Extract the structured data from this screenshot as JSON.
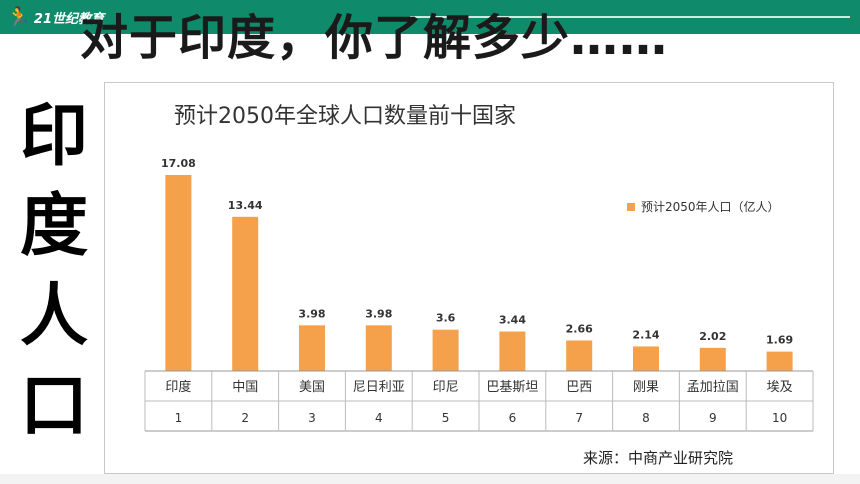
{
  "header": {
    "logo_text": "21世纪教育",
    "slide_title": "对于印度，你了解多少……"
  },
  "side_title": [
    "印",
    "度",
    "人",
    "口"
  ],
  "colors": {
    "bar": "#f5a04b",
    "header_bar": "#0f8a6a"
  },
  "chart_data": {
    "type": "bar",
    "title": "预计2050年全球人口数量前十国家",
    "categories": [
      "印度",
      "中国",
      "美国",
      "尼日利亚",
      "印尼",
      "巴基斯坦",
      "巴西",
      "刚果",
      "孟加拉国",
      "埃及"
    ],
    "category_index": [
      "1",
      "2",
      "3",
      "4",
      "5",
      "6",
      "7",
      "8",
      "9",
      "10"
    ],
    "series": [
      {
        "name": "预计2050年人口（亿人）",
        "values": [
          17.08,
          13.44,
          3.98,
          3.98,
          3.6,
          3.44,
          2.66,
          2.14,
          2.02,
          1.69
        ]
      }
    ],
    "data_labels": [
      "17.08",
      "13.44",
      "3.98",
      "3.98",
      "3.6",
      "3.44",
      "2.66",
      "2.14",
      "2.02",
      "1.69"
    ],
    "ylim": [
      0,
      19
    ],
    "grid": false,
    "legend_position": "right",
    "source": "来源：中商产业研究院"
  }
}
